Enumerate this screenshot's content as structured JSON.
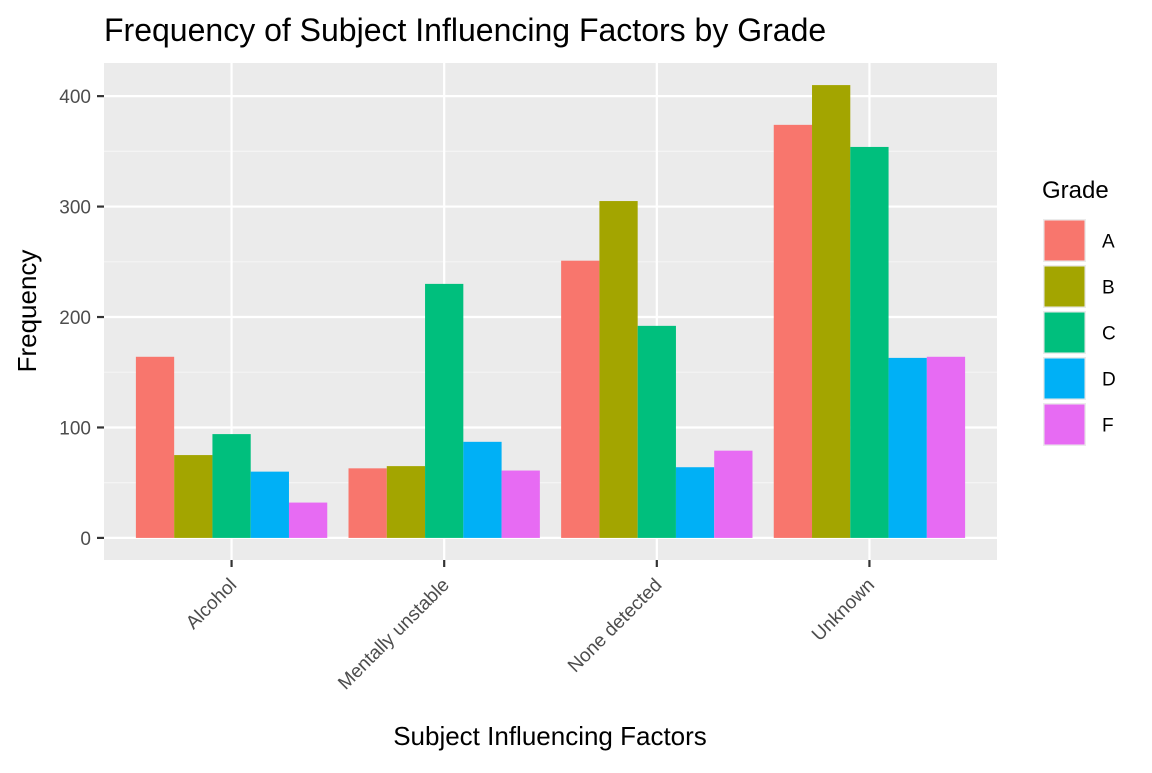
{
  "chart_data": {
    "type": "bar",
    "title": "Frequency of Subject Influencing Factors by Grade",
    "xlabel": "Subject Influencing Factors",
    "ylabel": "Frequency",
    "categories": [
      "Alcohol",
      "Mentally unstable",
      "None detected",
      "Unknown"
    ],
    "y_ticks": [
      0,
      100,
      200,
      300,
      400
    ],
    "ylim": [
      -20,
      430
    ],
    "grid": true,
    "legend": {
      "title": "Grade",
      "position": "right"
    },
    "series": [
      {
        "name": "A",
        "color": "#F8766D",
        "values": [
          164,
          63,
          251,
          374
        ]
      },
      {
        "name": "B",
        "color": "#A3A500",
        "values": [
          75,
          65,
          305,
          410
        ]
      },
      {
        "name": "C",
        "color": "#00BF7D",
        "values": [
          94,
          230,
          192,
          354
        ]
      },
      {
        "name": "D",
        "color": "#00B0F6",
        "values": [
          60,
          87,
          64,
          163
        ]
      },
      {
        "name": "F",
        "color": "#E76BF3",
        "values": [
          32,
          61,
          79,
          164
        ]
      }
    ]
  },
  "theme": {
    "panel_bg": "#EBEBEB",
    "grid_major": "#FFFFFF",
    "grid_minor": "#F5F5F5",
    "tick_color": "#333333"
  }
}
